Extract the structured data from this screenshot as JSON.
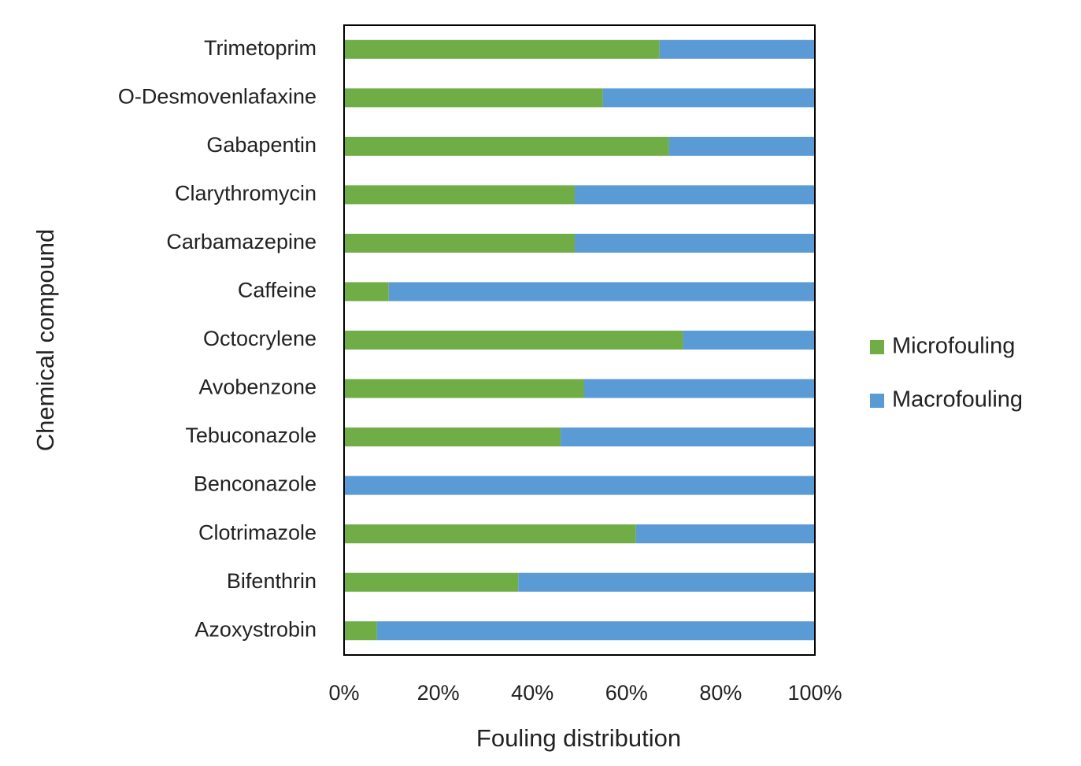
{
  "chart_data": {
    "type": "stacked-barh",
    "xlabel": "Fouling distribution",
    "ylabel": "Chemical compound",
    "categories": [
      "Trimetoprim",
      "O-Desmovenlafaxine",
      "Gabapentin",
      "Clarythromycin",
      "Carbamazepine",
      "Caffeine",
      "Octocrylene",
      "Avobenzone",
      "Tebuconazole",
      "Benconazole",
      "Clotrimazole",
      "Bifenthrin",
      "Azoxystrobin"
    ],
    "series": [
      {
        "name": "Microfouling",
        "color": "#70ad47",
        "values": [
          67,
          55,
          69,
          49,
          49,
          9.5,
          72,
          51,
          46,
          0,
          62,
          37,
          7
        ]
      },
      {
        "name": "Macrofouling",
        "color": "#5b9bd5",
        "values": [
          33,
          45,
          31,
          51,
          51,
          90.5,
          28,
          49,
          54,
          100,
          38,
          63,
          93
        ]
      }
    ],
    "xlim": [
      0,
      100
    ],
    "xticks": [
      {
        "value": 0,
        "label": "0%"
      },
      {
        "value": 20,
        "label": "20%"
      },
      {
        "value": 40,
        "label": "40%"
      },
      {
        "value": 60,
        "label": "60%"
      },
      {
        "value": 80,
        "label": "80%"
      },
      {
        "value": 100,
        "label": "100%"
      }
    ],
    "legend": "right"
  }
}
